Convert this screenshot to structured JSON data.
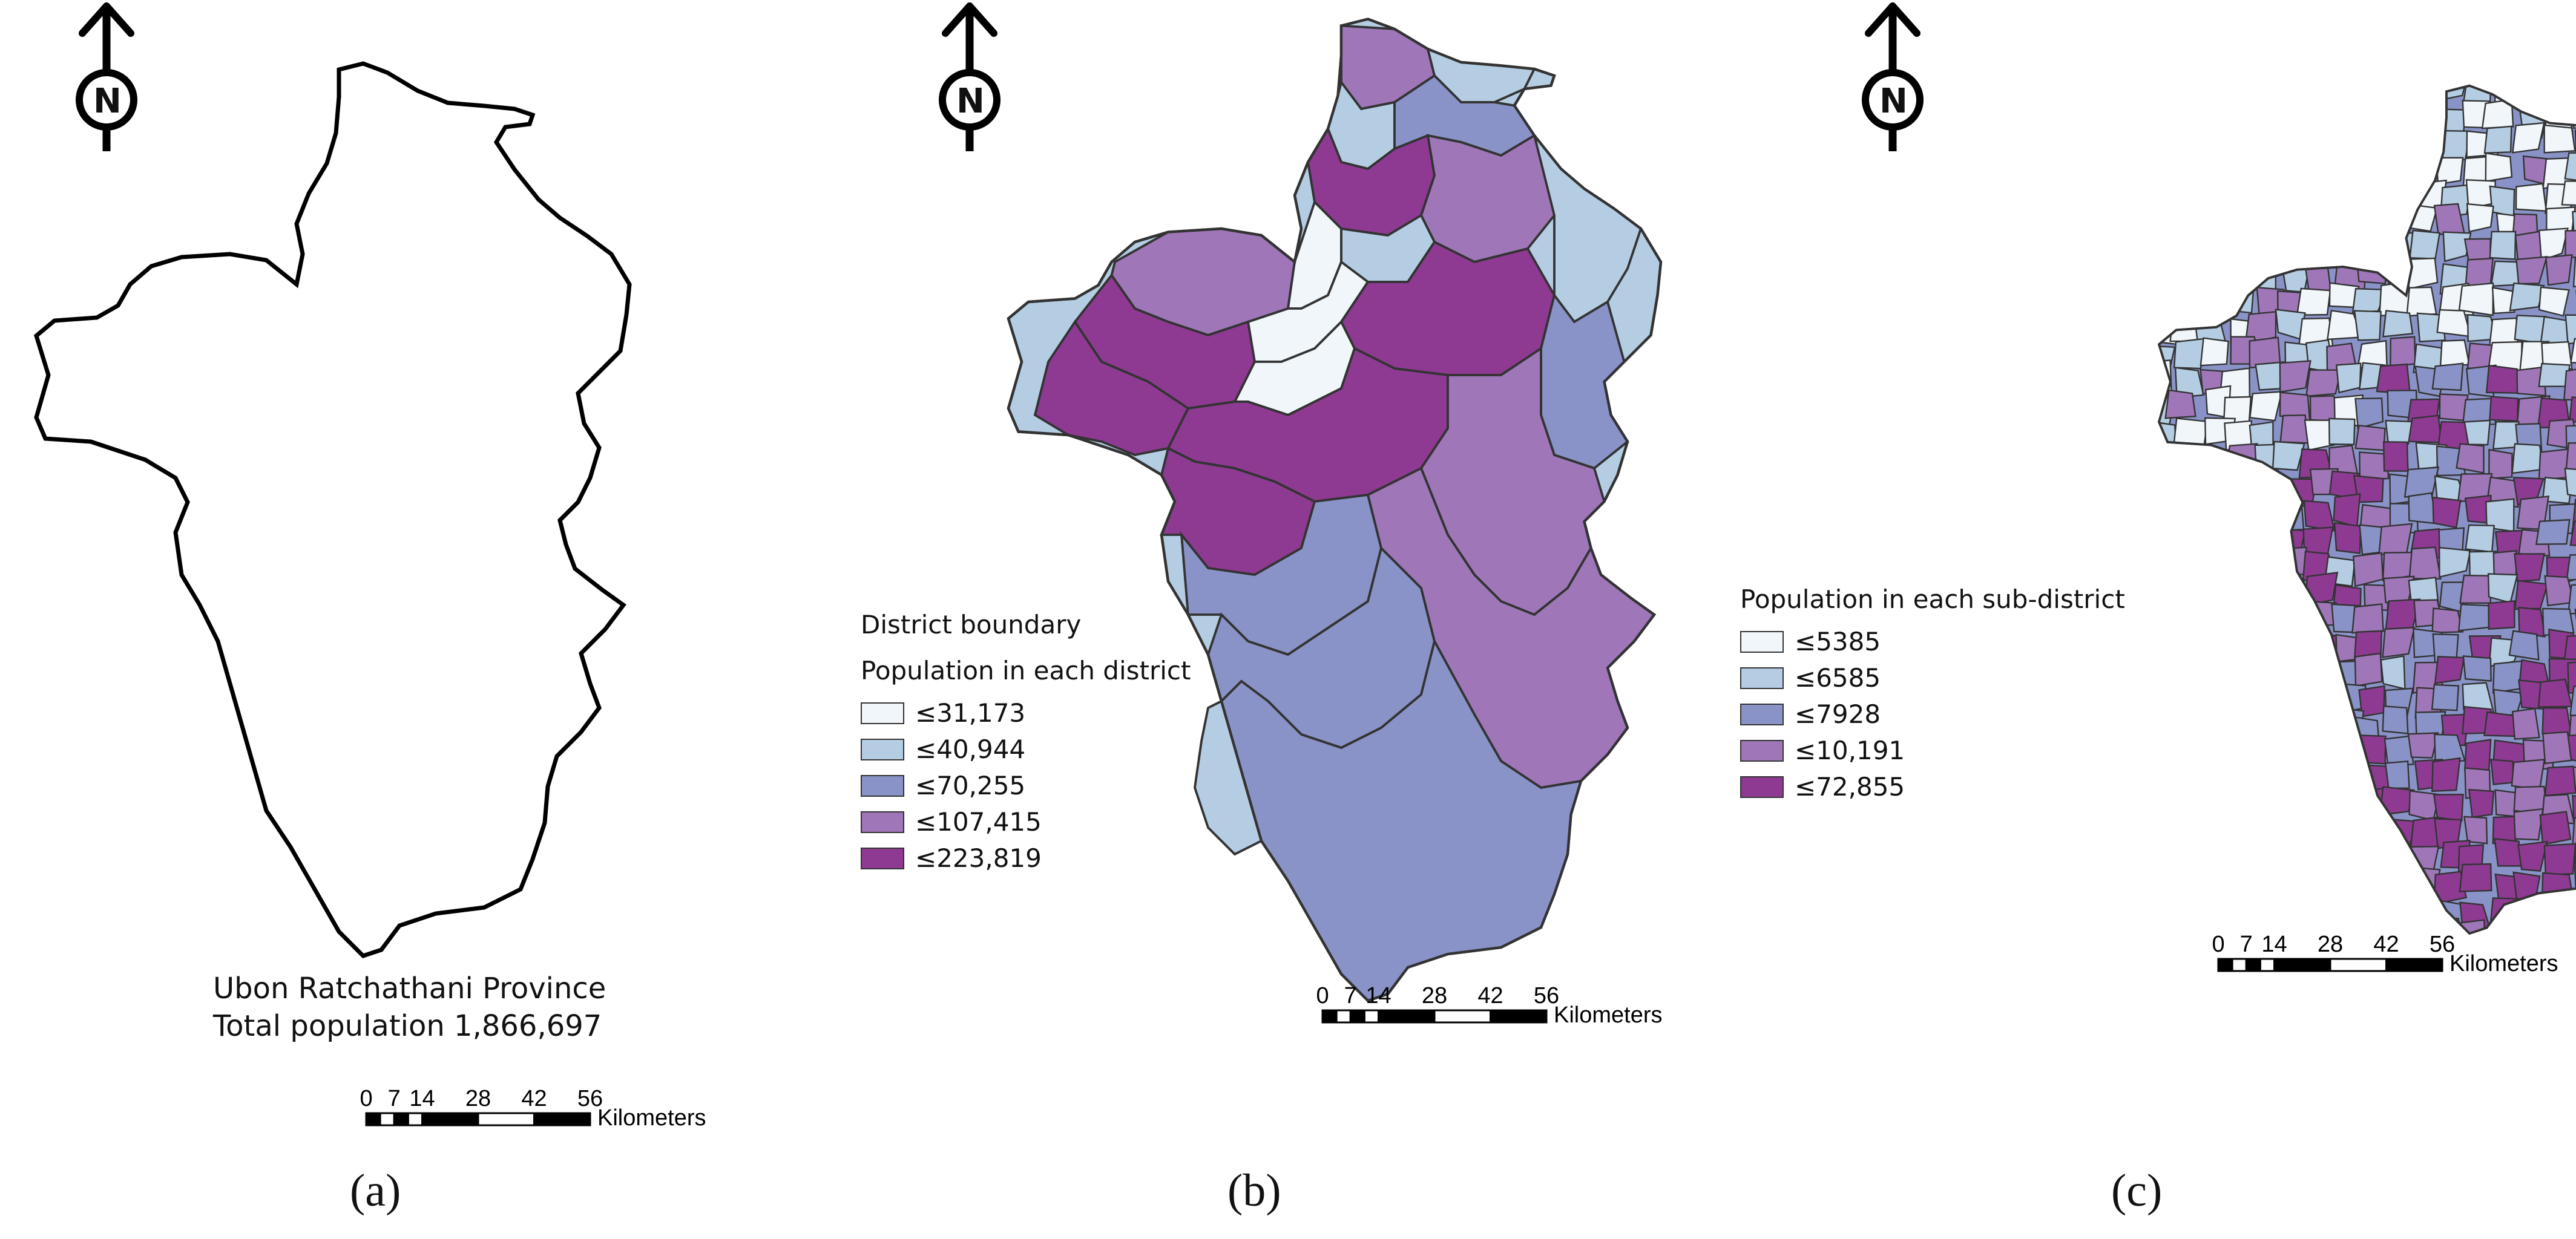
{
  "colors": {
    "classes": [
      "#f1f6fa",
      "#b5cde3",
      "#8993c7",
      "#9f77b9",
      "#8e3a92"
    ],
    "outline": "#111111",
    "background": "#ffffff"
  },
  "icons": [
    "north-arrow-icon"
  ],
  "panels": [
    {
      "id": "a",
      "caption": "(a)",
      "north_label": "N",
      "info_lines": [
        "Ubon Ratchathani Province",
        "Total population 1,866,697"
      ],
      "scale": {
        "ticks": [
          "0",
          "7",
          "14",
          "28",
          "42",
          "56"
        ],
        "unit": "Kilometers"
      }
    },
    {
      "id": "b",
      "caption": "(b)",
      "north_label": "N",
      "legend": {
        "boundary_label": "District boundary",
        "title": "Population in each district",
        "classes": [
          "≤31,173",
          "≤40,944",
          "≤70,255",
          "≤107,415",
          "≤223,819"
        ]
      },
      "scale": {
        "ticks": [
          "0",
          "7",
          "14",
          "28",
          "42",
          "56"
        ],
        "unit": "Kilometers"
      }
    },
    {
      "id": "c",
      "caption": "(c)",
      "north_label": "N",
      "legend": {
        "title": "Population in each sub-district",
        "classes": [
          "≤5385",
          "≤6585",
          "≤7928",
          "≤10,191",
          "≤72,855"
        ]
      },
      "scale": {
        "ticks": [
          "0",
          "7",
          "14",
          "28",
          "42",
          "56"
        ],
        "unit": "Kilometers"
      }
    }
  ]
}
